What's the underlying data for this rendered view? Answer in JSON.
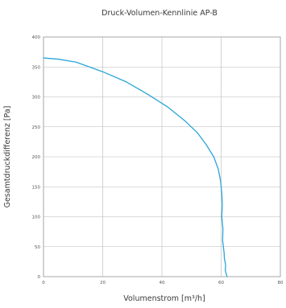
{
  "chart_data": {
    "type": "line",
    "title": "Druck-Volumen-Kennlinie AP-B",
    "xlabel": "Volumenstrom [m³/h]",
    "ylabel": "Gesamtdruckdifferenz [Pa]",
    "xlim": [
      0,
      80
    ],
    "ylim": [
      0,
      400
    ],
    "x_ticks": [
      "0",
      "20",
      "40",
      "60",
      "80"
    ],
    "y_ticks": [
      "0",
      "50",
      "100",
      "150",
      "200",
      "250",
      "300",
      "350",
      "400"
    ],
    "grid": true,
    "line_color": "#2aa5d8",
    "series": [
      {
        "x": [
          0,
          5,
          11,
          20,
          28,
          35,
          42,
          48,
          52,
          55,
          57.5,
          59,
          59.8,
          60.2,
          60.4,
          60.2,
          60.6,
          60.5,
          61.0,
          61.1,
          61.5,
          61.4,
          62.0
        ],
        "y": [
          365,
          363,
          358,
          342,
          325,
          305,
          283,
          259,
          240,
          220,
          200,
          180,
          160,
          140,
          120,
          100,
          80,
          60,
          40,
          30,
          20,
          10,
          0
        ]
      }
    ]
  }
}
